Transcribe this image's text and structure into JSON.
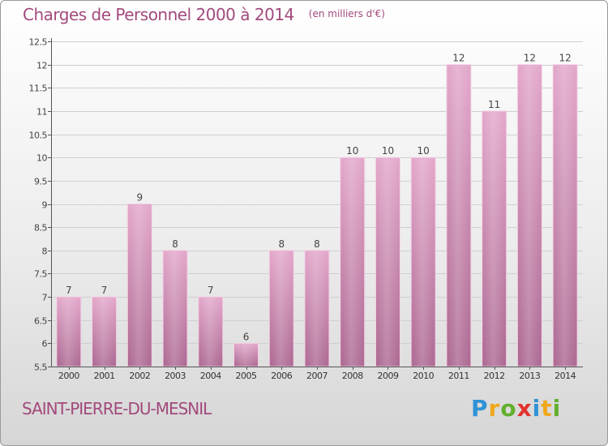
{
  "title": "Charges de Personnel 2000 à 2014",
  "subtitle": "(en milliers d'€)",
  "place": "SAINT-PIERRE-DU-MESNIL",
  "logo": {
    "letters": [
      "P",
      "r",
      "o",
      "x",
      "i",
      "t",
      "i"
    ],
    "colors": [
      "#2f93d6",
      "#f0a81c",
      "#62b02e",
      "#e2322b",
      "#2f93d6",
      "#f0a81c",
      "#62b02e"
    ]
  },
  "chart_data": {
    "type": "bar",
    "categories": [
      "2000",
      "2001",
      "2002",
      "2003",
      "2004",
      "2005",
      "2006",
      "2007",
      "2008",
      "2009",
      "2010",
      "2011",
      "2012",
      "2013",
      "2014"
    ],
    "values": [
      7,
      7,
      9,
      8,
      7,
      6,
      8,
      8,
      10,
      10,
      10,
      12,
      11,
      12,
      12
    ],
    "data_labels": [
      "7",
      "7",
      "9",
      "8",
      "7",
      "6",
      "8",
      "8",
      "10",
      "10",
      "10",
      "12",
      "11",
      "12",
      "12"
    ],
    "ylim": [
      5.5,
      12.5
    ],
    "yticks": [
      5.5,
      6,
      6.5,
      7,
      7.5,
      8,
      8.5,
      9,
      9.5,
      10,
      10.5,
      11,
      11.5,
      12,
      12.5
    ],
    "ytick_labels": [
      "5.5",
      "6",
      "6.5",
      "7",
      "7.5",
      "8",
      "8.5",
      "9",
      "9.5",
      "10",
      "10.5",
      "11",
      "11.5",
      "12",
      "12.5"
    ],
    "grid": true,
    "xlabel": "",
    "ylabel": "",
    "bar_color": "#d58db5"
  }
}
